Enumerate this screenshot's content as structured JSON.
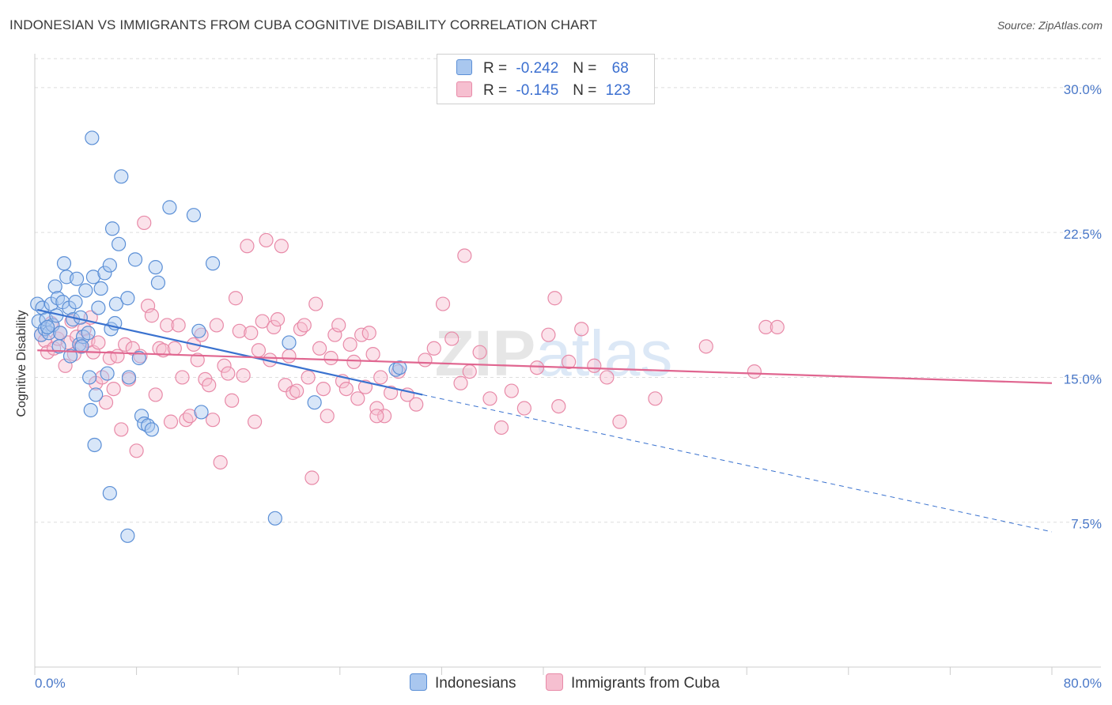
{
  "title": "INDONESIAN VS IMMIGRANTS FROM CUBA COGNITIVE DISABILITY CORRELATION CHART",
  "source": "Source: ZipAtlas.com",
  "watermark": "ZIPatlas",
  "legend": {
    "row1": {
      "r_label": "R =",
      "r_value": "-0.242",
      "n_label": "N =",
      "n_value": "68"
    },
    "row2": {
      "r_label": "R =",
      "r_value": "-0.145",
      "n_label": "N =",
      "n_value": "123"
    }
  },
  "colors": {
    "blue_fill": "#a9c7ef",
    "blue_stroke": "#5b8fd6",
    "blue_line": "#3a72cf",
    "pink_fill": "#f6bfd0",
    "pink_stroke": "#e88aa8",
    "pink_line": "#e06690",
    "grid": "#dddddd",
    "tick_text": "#4a78c8"
  },
  "chart_data": {
    "type": "scatter",
    "title": "INDONESIAN VS IMMIGRANTS FROM CUBA COGNITIVE DISABILITY CORRELATION CHART",
    "xlabel": "",
    "ylabel": "Cognitive Disability",
    "xlim": [
      0,
      80
    ],
    "ylim": [
      0,
      32
    ],
    "x_tick_labels": [
      "0.0%",
      "80.0%"
    ],
    "y_ticks": [
      7.5,
      15.0,
      22.5,
      30.0
    ],
    "y_tick_labels": [
      "7.5%",
      "15.0%",
      "22.5%",
      "30.0%"
    ],
    "grid": true,
    "legend_position": "top-center",
    "series": [
      {
        "name": "Indonesians",
        "r": -0.242,
        "n": 68,
        "trend": {
          "x0": 0.2,
          "y0": 18.5,
          "x1": 30.5,
          "y1": 14.1,
          "dash_to_x": 80,
          "dash_to_y": 7.0
        },
        "points": [
          [
            0.2,
            18.8
          ],
          [
            0.3,
            17.9
          ],
          [
            0.5,
            17.2
          ],
          [
            0.6,
            18.6
          ],
          [
            0.8,
            17.5
          ],
          [
            0.9,
            18.0
          ],
          [
            1.1,
            17.3
          ],
          [
            1.3,
            18.8
          ],
          [
            1.4,
            17.7
          ],
          [
            1.6,
            19.7
          ],
          [
            1.8,
            19.1
          ],
          [
            1.9,
            16.6
          ],
          [
            2.0,
            17.3
          ],
          [
            2.2,
            18.9
          ],
          [
            2.3,
            20.9
          ],
          [
            2.5,
            20.2
          ],
          [
            2.7,
            18.6
          ],
          [
            2.8,
            16.1
          ],
          [
            3.0,
            18.0
          ],
          [
            3.2,
            18.9
          ],
          [
            3.3,
            20.1
          ],
          [
            3.5,
            16.7
          ],
          [
            3.6,
            18.1
          ],
          [
            3.8,
            17.1
          ],
          [
            4.0,
            19.5
          ],
          [
            4.2,
            17.3
          ],
          [
            4.3,
            15.0
          ],
          [
            4.4,
            13.3
          ],
          [
            4.6,
            20.2
          ],
          [
            4.7,
            11.5
          ],
          [
            4.8,
            14.1
          ],
          [
            5.0,
            18.6
          ],
          [
            5.2,
            19.6
          ],
          [
            5.5,
            20.4
          ],
          [
            5.7,
            15.2
          ],
          [
            5.9,
            20.8
          ],
          [
            6.0,
            17.5
          ],
          [
            6.1,
            22.7
          ],
          [
            6.3,
            17.8
          ],
          [
            6.4,
            18.8
          ],
          [
            6.6,
            21.9
          ],
          [
            6.8,
            25.4
          ],
          [
            7.3,
            19.1
          ],
          [
            7.4,
            15.0
          ],
          [
            7.9,
            21.1
          ],
          [
            8.2,
            16.0
          ],
          [
            8.4,
            13.0
          ],
          [
            8.6,
            12.6
          ],
          [
            8.9,
            12.5
          ],
          [
            9.5,
            20.7
          ],
          [
            9.7,
            19.9
          ],
          [
            10.6,
            23.8
          ],
          [
            12.5,
            23.4
          ],
          [
            12.9,
            17.4
          ],
          [
            13.1,
            13.2
          ],
          [
            14.0,
            20.9
          ],
          [
            18.9,
            7.7
          ],
          [
            20.0,
            16.8
          ],
          [
            22.0,
            13.7
          ],
          [
            28.4,
            15.4
          ],
          [
            28.7,
            15.5
          ],
          [
            4.5,
            27.4
          ],
          [
            5.9,
            9.0
          ],
          [
            7.3,
            6.8
          ],
          [
            1.0,
            17.6
          ],
          [
            1.7,
            18.2
          ],
          [
            3.7,
            16.6
          ],
          [
            9.2,
            12.3
          ]
        ]
      },
      {
        "name": "Immigrants from Cuba",
        "r": -0.145,
        "n": 123,
        "trend": {
          "x0": 0.2,
          "y0": 16.4,
          "x1": 80,
          "y1": 14.7
        },
        "points": [
          [
            0.5,
            17.2
          ],
          [
            0.8,
            16.9
          ],
          [
            1.0,
            16.3
          ],
          [
            1.3,
            17.8
          ],
          [
            1.5,
            16.5
          ],
          [
            1.8,
            17.0
          ],
          [
            2.0,
            17.3
          ],
          [
            2.4,
            15.6
          ],
          [
            2.6,
            16.8
          ],
          [
            2.9,
            17.9
          ],
          [
            3.1,
            16.2
          ],
          [
            3.3,
            17.1
          ],
          [
            3.6,
            16.6
          ],
          [
            3.9,
            17.5
          ],
          [
            4.2,
            16.9
          ],
          [
            4.4,
            18.1
          ],
          [
            4.6,
            16.3
          ],
          [
            4.8,
            14.7
          ],
          [
            5.0,
            16.8
          ],
          [
            5.3,
            15.0
          ],
          [
            5.6,
            13.7
          ],
          [
            5.9,
            16.0
          ],
          [
            6.2,
            14.4
          ],
          [
            6.5,
            16.1
          ],
          [
            6.8,
            12.3
          ],
          [
            7.1,
            16.7
          ],
          [
            7.4,
            14.9
          ],
          [
            7.7,
            16.5
          ],
          [
            8.0,
            11.2
          ],
          [
            8.3,
            16.1
          ],
          [
            8.6,
            23.0
          ],
          [
            8.9,
            18.7
          ],
          [
            9.2,
            18.2
          ],
          [
            9.5,
            14.1
          ],
          [
            9.8,
            16.5
          ],
          [
            10.1,
            16.4
          ],
          [
            10.4,
            17.7
          ],
          [
            10.7,
            12.7
          ],
          [
            11.0,
            16.5
          ],
          [
            11.3,
            17.7
          ],
          [
            11.6,
            15.0
          ],
          [
            11.9,
            12.8
          ],
          [
            12.2,
            13.0
          ],
          [
            12.5,
            16.7
          ],
          [
            12.8,
            15.9
          ],
          [
            13.1,
            17.2
          ],
          [
            13.4,
            14.9
          ],
          [
            13.7,
            14.6
          ],
          [
            14.0,
            12.8
          ],
          [
            14.3,
            17.7
          ],
          [
            14.6,
            10.6
          ],
          [
            14.9,
            15.6
          ],
          [
            15.2,
            15.2
          ],
          [
            15.5,
            13.8
          ],
          [
            15.8,
            19.1
          ],
          [
            16.1,
            17.4
          ],
          [
            16.4,
            15.1
          ],
          [
            16.7,
            21.8
          ],
          [
            17.0,
            17.3
          ],
          [
            17.3,
            12.7
          ],
          [
            17.6,
            16.4
          ],
          [
            17.9,
            17.9
          ],
          [
            18.2,
            22.1
          ],
          [
            18.5,
            15.9
          ],
          [
            18.8,
            17.6
          ],
          [
            19.1,
            18.0
          ],
          [
            19.4,
            21.8
          ],
          [
            19.7,
            14.6
          ],
          [
            20.0,
            16.1
          ],
          [
            20.3,
            14.2
          ],
          [
            20.6,
            14.3
          ],
          [
            20.9,
            17.5
          ],
          [
            21.2,
            17.7
          ],
          [
            21.5,
            15.0
          ],
          [
            21.8,
            9.8
          ],
          [
            22.1,
            18.8
          ],
          [
            22.4,
            16.5
          ],
          [
            22.7,
            14.4
          ],
          [
            23.0,
            13.0
          ],
          [
            23.3,
            16.0
          ],
          [
            23.6,
            17.2
          ],
          [
            23.9,
            17.7
          ],
          [
            24.2,
            14.8
          ],
          [
            24.5,
            14.4
          ],
          [
            24.8,
            16.7
          ],
          [
            25.1,
            15.8
          ],
          [
            25.4,
            13.9
          ],
          [
            25.7,
            17.2
          ],
          [
            26.0,
            14.5
          ],
          [
            26.3,
            17.3
          ],
          [
            26.6,
            16.2
          ],
          [
            26.9,
            13.4
          ],
          [
            27.2,
            15.0
          ],
          [
            27.5,
            13.0
          ],
          [
            28.0,
            14.2
          ],
          [
            28.6,
            15.3
          ],
          [
            29.3,
            14.1
          ],
          [
            30.0,
            13.6
          ],
          [
            30.7,
            15.9
          ],
          [
            31.4,
            16.5
          ],
          [
            32.1,
            18.8
          ],
          [
            32.8,
            17.0
          ],
          [
            33.5,
            14.7
          ],
          [
            34.2,
            15.3
          ],
          [
            35.0,
            16.3
          ],
          [
            35.8,
            13.9
          ],
          [
            36.7,
            12.4
          ],
          [
            37.5,
            14.3
          ],
          [
            38.5,
            13.4
          ],
          [
            39.5,
            15.5
          ],
          [
            40.4,
            17.2
          ],
          [
            41.2,
            13.5
          ],
          [
            42.0,
            15.8
          ],
          [
            43.0,
            17.5
          ],
          [
            44.0,
            15.6
          ],
          [
            45.0,
            15.0
          ],
          [
            46.0,
            12.7
          ],
          [
            48.8,
            13.9
          ],
          [
            52.8,
            16.6
          ],
          [
            56.6,
            15.3
          ],
          [
            57.5,
            17.6
          ],
          [
            58.4,
            17.6
          ],
          [
            40.9,
            19.1
          ],
          [
            33.8,
            21.3
          ],
          [
            26.9,
            13.0
          ]
        ]
      }
    ]
  },
  "bottom_legend": {
    "item1": "Indonesians",
    "item2": "Immigrants from Cuba"
  }
}
